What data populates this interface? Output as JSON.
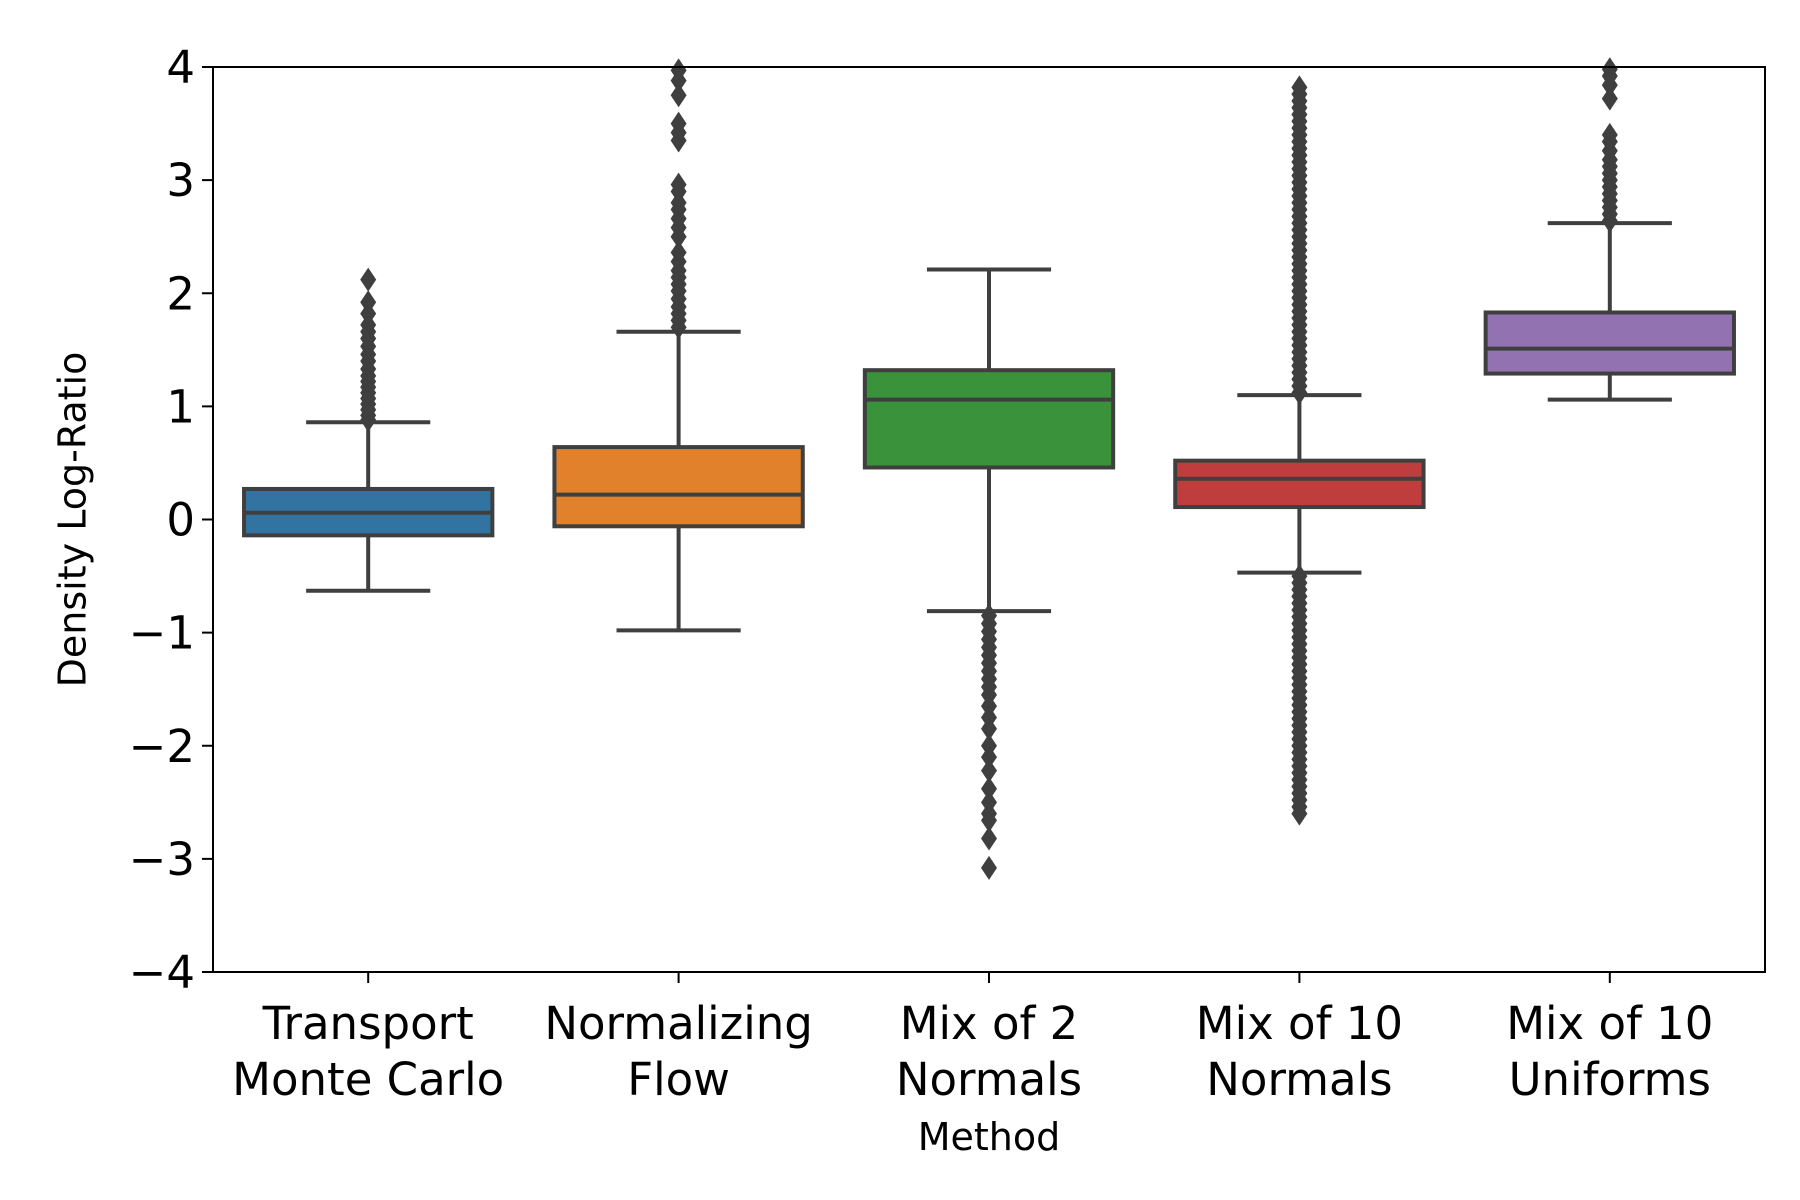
{
  "chart_data": {
    "type": "boxplot",
    "title": "",
    "xlabel": "Method",
    "ylabel": "Density Log-Ratio",
    "ylim": [
      -4,
      4
    ],
    "yticks": [
      4,
      3,
      2,
      1,
      0,
      -1,
      -2,
      -3,
      -4
    ],
    "ytick_labels": [
      "4",
      "3",
      "2",
      "1",
      "0",
      "−1",
      "−2",
      "−3",
      "−4"
    ],
    "grid": false,
    "categories": [
      {
        "label_lines": [
          "Transport",
          "Monte Carlo"
        ],
        "color": "#3274a1",
        "whisker_low": -0.63,
        "q1": -0.14,
        "median": 0.06,
        "q3": 0.27,
        "whisker_high": 0.86,
        "outliers": [
          0.88,
          0.92,
          0.97,
          1.02,
          1.07,
          1.12,
          1.17,
          1.22,
          1.27,
          1.33,
          1.4,
          1.46,
          1.53,
          1.6,
          1.66,
          1.72,
          1.82,
          1.92,
          2.12
        ]
      },
      {
        "label_lines": [
          "Normalizing",
          "Flow"
        ],
        "color": "#e1812c",
        "whisker_low": -0.98,
        "q1": -0.06,
        "median": 0.22,
        "q3": 0.64,
        "whisker_high": 1.66,
        "outliers": [
          1.7,
          1.76,
          1.82,
          1.88,
          1.95,
          2.02,
          2.08,
          2.14,
          2.2,
          2.28,
          2.36,
          2.5,
          2.58,
          2.66,
          2.74,
          2.8,
          2.9,
          2.96,
          3.35,
          3.42,
          3.5,
          3.75,
          3.88,
          3.97
        ]
      },
      {
        "label_lines": [
          "Mix of 2",
          "Normals"
        ],
        "color": "#3a923a",
        "whisker_low": -0.81,
        "q1": 0.46,
        "median": 1.06,
        "q3": 1.32,
        "whisker_high": 2.21,
        "outliers": [
          -0.85,
          -0.92,
          -0.99,
          -1.06,
          -1.13,
          -1.2,
          -1.27,
          -1.34,
          -1.41,
          -1.48,
          -1.55,
          -1.65,
          -1.75,
          -1.85,
          -2.0,
          -2.1,
          -2.22,
          -2.38,
          -2.5,
          -2.6,
          -2.66,
          -2.82,
          -3.08
        ]
      },
      {
        "label_lines": [
          "Mix of 10",
          "Normals"
        ],
        "color": "#c03d3e",
        "whisker_low": -0.47,
        "q1": 0.11,
        "median": 0.36,
        "q3": 0.52,
        "whisker_high": 1.1,
        "outliers": [
          1.12,
          1.18,
          1.24,
          1.3,
          1.36,
          1.42,
          1.48,
          1.54,
          1.6,
          1.66,
          1.72,
          1.78,
          1.84,
          1.9,
          1.96,
          2.02,
          2.08,
          2.14,
          2.2,
          2.26,
          2.32,
          2.38,
          2.44,
          2.5,
          2.56,
          2.62,
          2.68,
          2.74,
          2.8,
          2.86,
          2.92,
          2.98,
          3.04,
          3.1,
          3.16,
          3.22,
          3.28,
          3.34,
          3.4,
          3.46,
          3.52,
          3.58,
          3.64,
          3.7,
          3.76,
          3.82,
          -0.5,
          -0.56,
          -0.62,
          -0.68,
          -0.74,
          -0.8,
          -0.86,
          -0.92,
          -0.98,
          -1.04,
          -1.1,
          -1.16,
          -1.22,
          -1.28,
          -1.34,
          -1.4,
          -1.46,
          -1.52,
          -1.58,
          -1.64,
          -1.7,
          -1.76,
          -1.82,
          -1.88,
          -1.94,
          -2.0,
          -2.06,
          -2.12,
          -2.18,
          -2.24,
          -2.3,
          -2.36,
          -2.42,
          -2.48,
          -2.54,
          -2.6
        ]
      },
      {
        "label_lines": [
          "Mix of 10",
          "Uniforms"
        ],
        "color": "#9372b2",
        "whisker_low": 1.06,
        "q1": 1.29,
        "median": 1.51,
        "q3": 1.83,
        "whisker_high": 2.62,
        "outliers": [
          2.64,
          2.7,
          2.76,
          2.82,
          2.88,
          2.94,
          3.0,
          3.06,
          3.12,
          3.18,
          3.26,
          3.34,
          3.4,
          3.72,
          3.84,
          3.92,
          3.98
        ]
      }
    ]
  }
}
